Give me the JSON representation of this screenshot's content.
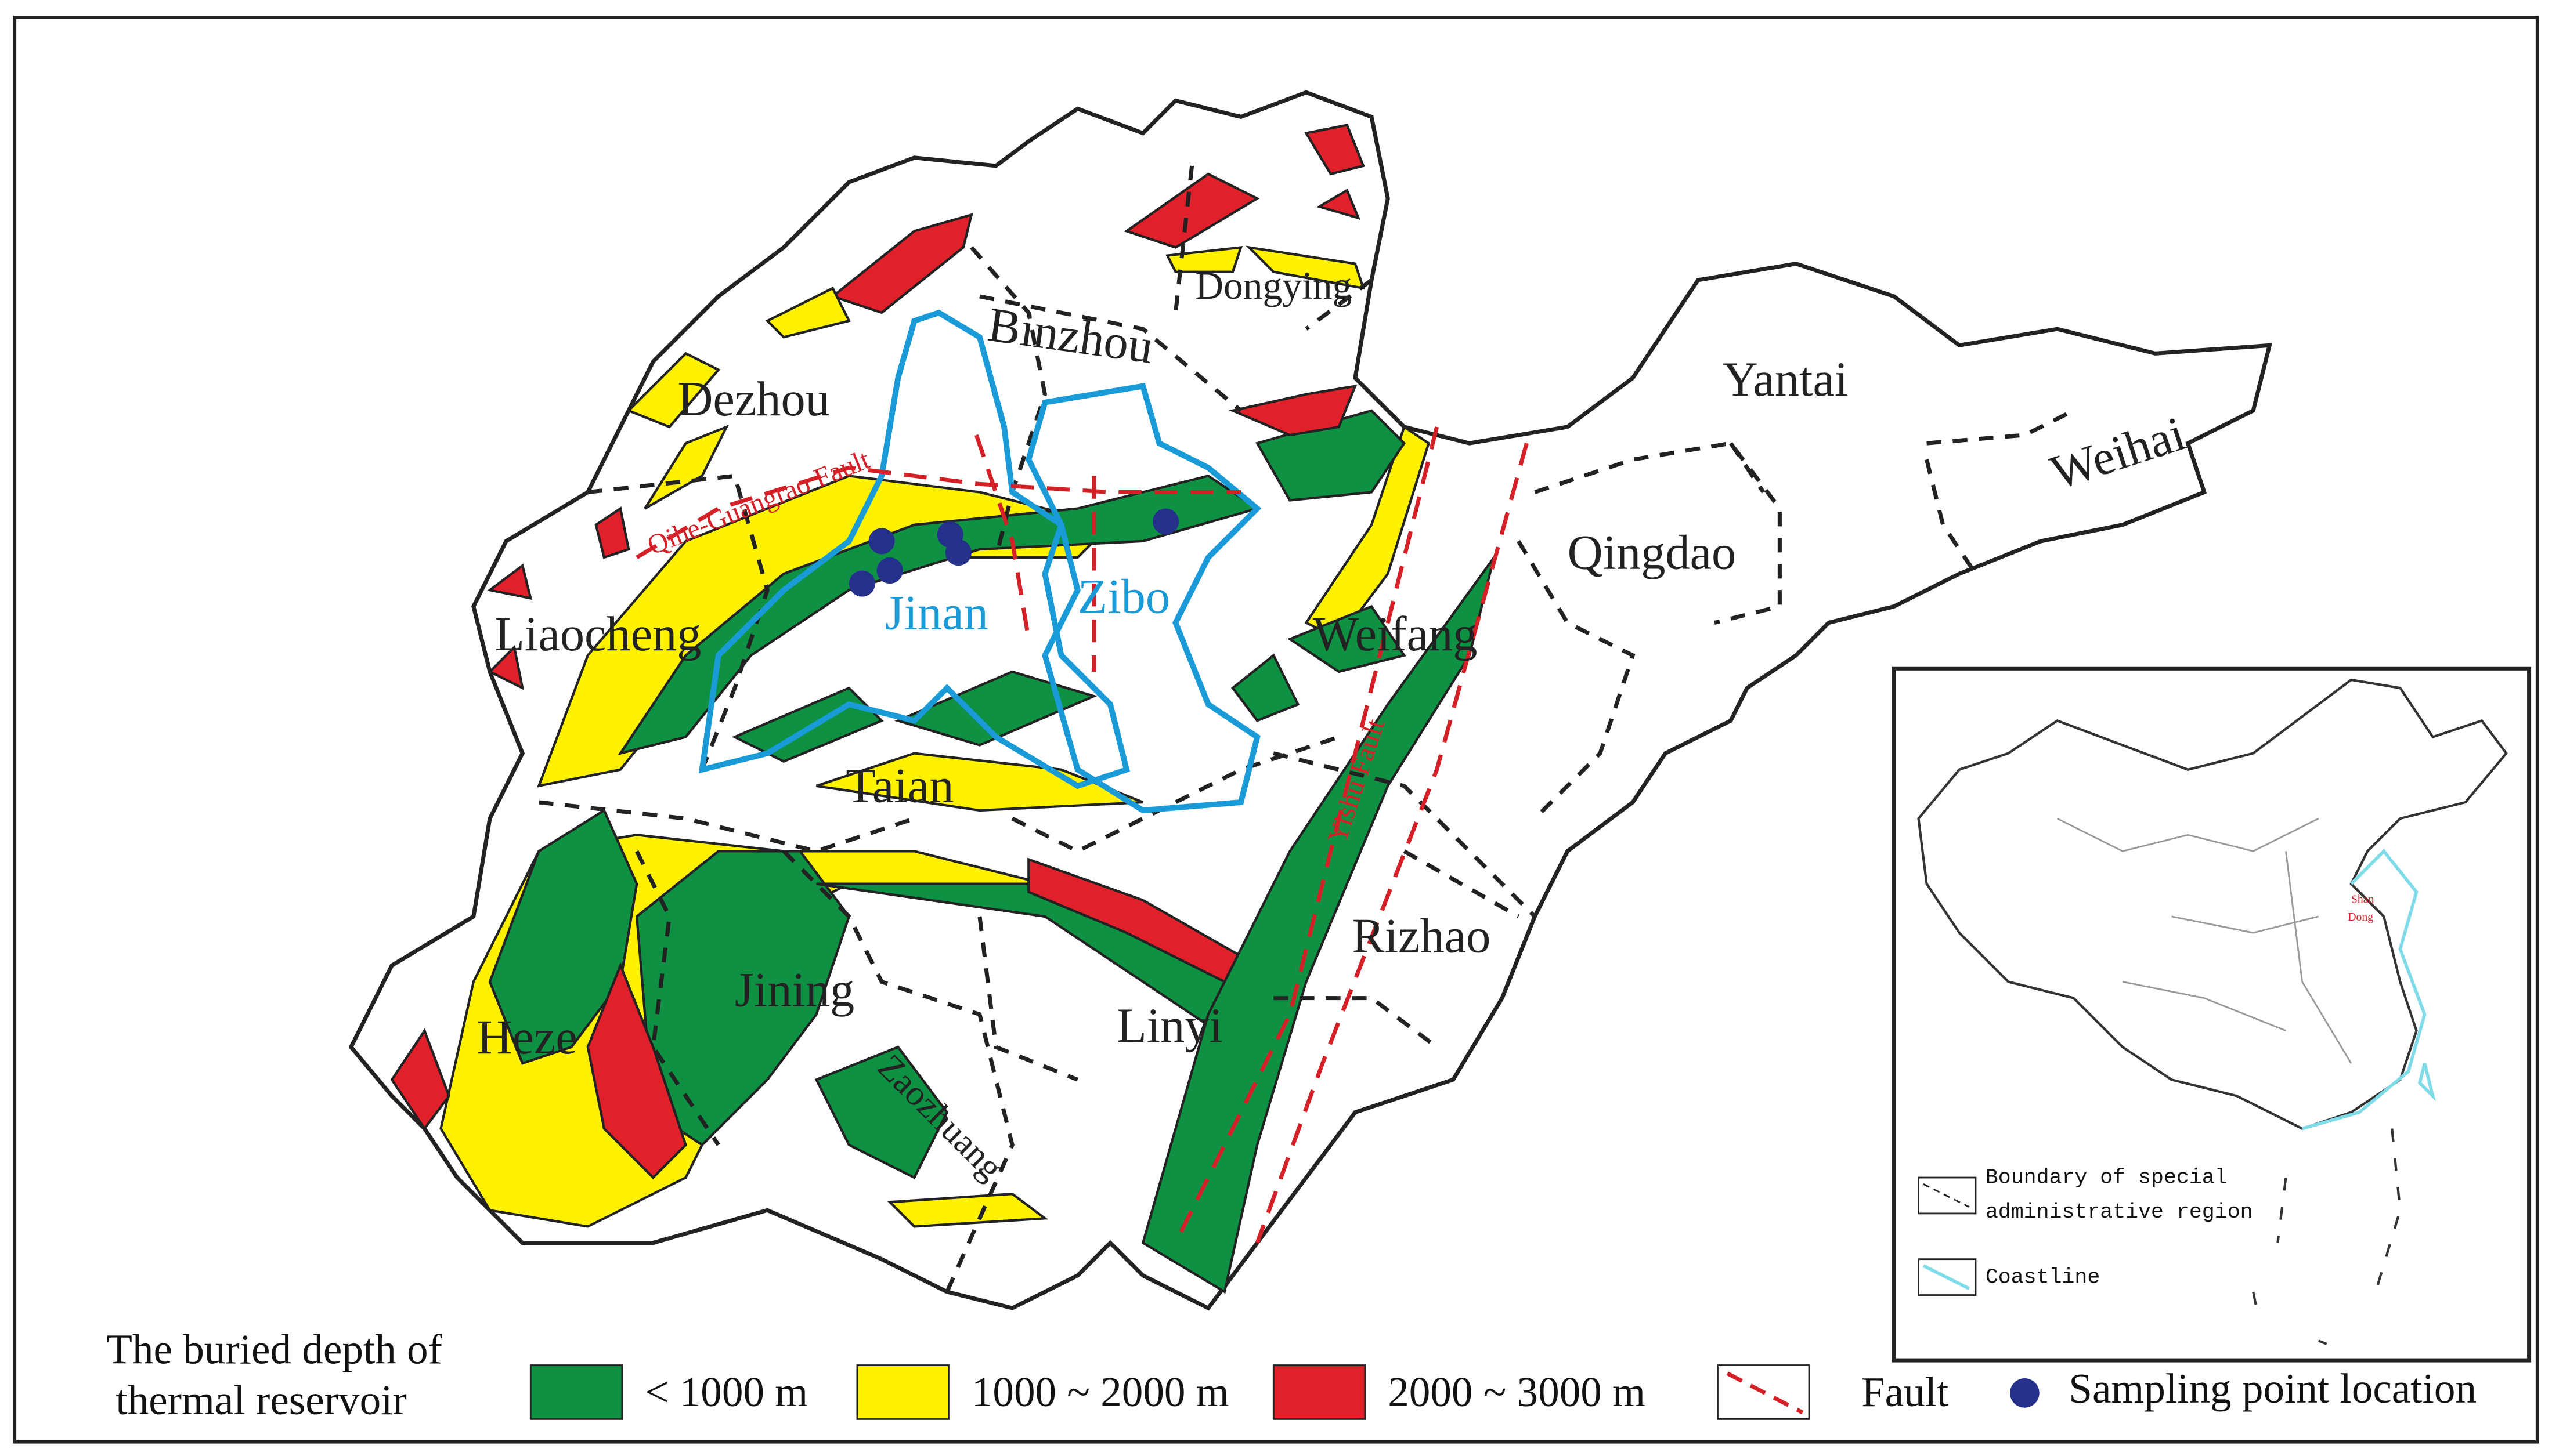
{
  "map": {
    "cities": [
      "Dongying",
      "Binzhou",
      "Dezhou",
      "Yantai",
      "Weihai",
      "Qingdao",
      "Liaocheng",
      "Jinan",
      "Zibo",
      "Weifang",
      "Taian",
      "Rizhao",
      "Jining",
      "Heze",
      "Linyi",
      "Zaozhuang"
    ],
    "faults": [
      "Qihe-Guangrao Fault",
      "Yishu Fault"
    ]
  },
  "legend": {
    "title_lines": [
      "The buried depth of",
      "thermal reservoir"
    ],
    "items": [
      "< 1000 m",
      "1000 ~ 2000 m",
      "2000 ~ 3000 m",
      "Fault",
      "Sampling point location"
    ]
  },
  "inset": {
    "label_lines": [
      "Shan",
      "Dong"
    ],
    "boundary_lines": [
      "Boundary of special",
      "administrative region"
    ],
    "coastline": "Coastline"
  }
}
